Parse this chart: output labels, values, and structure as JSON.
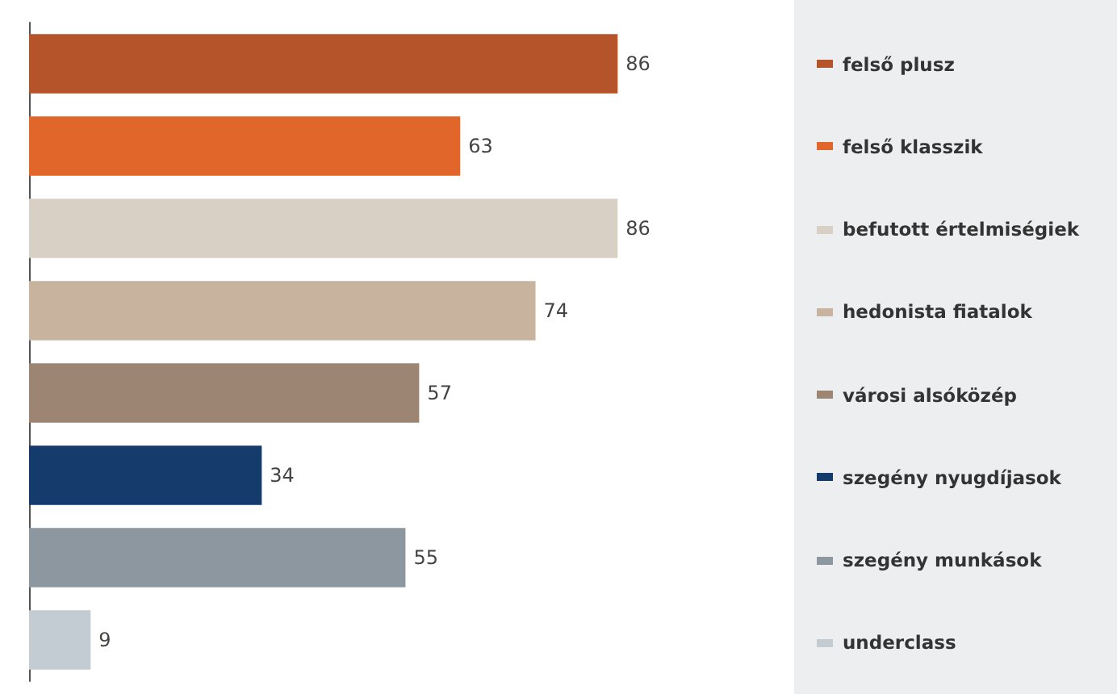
{
  "chart_data": {
    "type": "bar",
    "orientation": "horizontal",
    "categories": [
      "felső plusz",
      "felső klasszik",
      "befutott értelmiségiek",
      "hedonista fiatalok",
      "városi alsóközép",
      "szegény nyugdíjasok",
      "szegény munkások",
      "underclass"
    ],
    "values": [
      86,
      63,
      86,
      74,
      57,
      34,
      55,
      9
    ],
    "colors": [
      "#b5532a",
      "#e0662a",
      "#d8d0c4",
      "#c8b49e",
      "#9c8673",
      "#153a6c",
      "#8c979f",
      "#c3ccd3"
    ],
    "data_labels": true,
    "tick_labels": false,
    "grid": false
  }
}
